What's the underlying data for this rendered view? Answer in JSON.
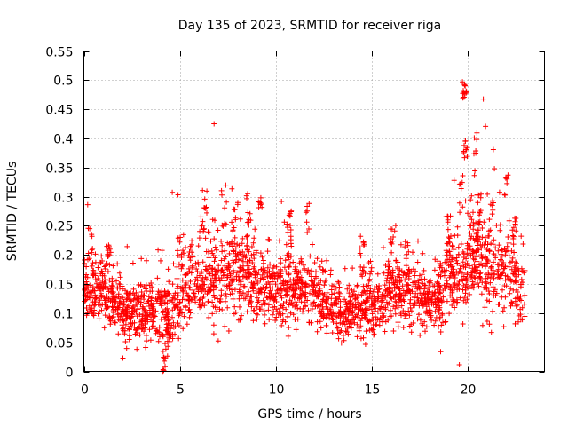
{
  "chart_data": {
    "type": "scatter",
    "title": "Day 135 of 2023, SRMTID for receiver riga",
    "xlabel": "GPS time / hours",
    "ylabel": "SRMTID / TECUs",
    "xlim": [
      0,
      24
    ],
    "ylim": [
      0,
      0.55
    ],
    "xticks": [
      "0",
      "5",
      "10",
      "15",
      "20"
    ],
    "yticks": [
      "0",
      "0.05",
      "0.1",
      "0.15",
      "0.2",
      "0.25",
      "0.3",
      "0.35",
      "0.4",
      "0.45",
      "0.5",
      "0.55"
    ],
    "grid": true,
    "marker": "+",
    "color": "#ff0000",
    "x_end_hours": 23.0,
    "level_profile": [
      [
        0.0,
        0.135
      ],
      [
        0.5,
        0.14
      ],
      [
        1.0,
        0.13
      ],
      [
        1.5,
        0.12
      ],
      [
        2.0,
        0.105
      ],
      [
        2.5,
        0.095
      ],
      [
        3.0,
        0.1
      ],
      [
        3.5,
        0.105
      ],
      [
        4.0,
        0.1
      ],
      [
        4.3,
        0.085
      ],
      [
        4.6,
        0.11
      ],
      [
        5.0,
        0.13
      ],
      [
        5.5,
        0.145
      ],
      [
        6.0,
        0.15
      ],
      [
        6.5,
        0.16
      ],
      [
        7.0,
        0.15
      ],
      [
        7.5,
        0.16
      ],
      [
        8.0,
        0.17
      ],
      [
        8.5,
        0.165
      ],
      [
        9.0,
        0.15
      ],
      [
        9.5,
        0.14
      ],
      [
        10.0,
        0.14
      ],
      [
        10.5,
        0.145
      ],
      [
        11.0,
        0.14
      ],
      [
        11.5,
        0.14
      ],
      [
        12.0,
        0.13
      ],
      [
        12.5,
        0.12
      ],
      [
        13.0,
        0.11
      ],
      [
        13.5,
        0.1
      ],
      [
        14.0,
        0.105
      ],
      [
        14.5,
        0.11
      ],
      [
        15.0,
        0.11
      ],
      [
        15.5,
        0.12
      ],
      [
        16.0,
        0.135
      ],
      [
        16.5,
        0.14
      ],
      [
        17.0,
        0.14
      ],
      [
        17.5,
        0.13
      ],
      [
        18.0,
        0.12
      ],
      [
        18.5,
        0.13
      ],
      [
        19.0,
        0.15
      ],
      [
        19.5,
        0.17
      ],
      [
        20.0,
        0.19
      ],
      [
        20.5,
        0.19
      ],
      [
        21.0,
        0.18
      ],
      [
        21.5,
        0.18
      ],
      [
        22.0,
        0.19
      ],
      [
        22.5,
        0.15
      ],
      [
        23.0,
        0.12
      ]
    ],
    "spread_profile": [
      [
        0.0,
        0.035
      ],
      [
        1.0,
        0.035
      ],
      [
        2.5,
        0.03
      ],
      [
        4.0,
        0.04
      ],
      [
        5.5,
        0.045
      ],
      [
        6.5,
        0.05
      ],
      [
        8.0,
        0.05
      ],
      [
        10.0,
        0.04
      ],
      [
        12.0,
        0.035
      ],
      [
        13.5,
        0.03
      ],
      [
        15.0,
        0.035
      ],
      [
        16.5,
        0.04
      ],
      [
        18.0,
        0.035
      ],
      [
        19.5,
        0.05
      ],
      [
        20.5,
        0.06
      ],
      [
        22.0,
        0.055
      ],
      [
        23.0,
        0.035
      ]
    ],
    "bursts": [
      [
        0.35,
        0.26,
        0.03
      ],
      [
        1.3,
        0.22,
        0.012
      ],
      [
        4.15,
        0.035,
        0.02
      ],
      [
        5.0,
        0.27,
        0.04
      ],
      [
        5.6,
        0.24,
        0.03
      ],
      [
        6.3,
        0.33,
        0.04
      ],
      [
        7.3,
        0.33,
        0.04
      ],
      [
        7.9,
        0.29,
        0.04
      ],
      [
        8.6,
        0.31,
        0.04
      ],
      [
        9.2,
        0.31,
        0.015
      ],
      [
        10.7,
        0.28,
        0.04
      ],
      [
        11.7,
        0.31,
        0.04
      ],
      [
        14.5,
        0.23,
        0.03
      ],
      [
        16.0,
        0.27,
        0.04
      ],
      [
        16.8,
        0.25,
        0.04
      ],
      [
        19.0,
        0.27,
        0.04
      ],
      [
        19.7,
        0.34,
        0.03
      ],
      [
        19.82,
        0.5,
        0.015
      ],
      [
        19.9,
        0.4,
        0.02
      ],
      [
        20.4,
        0.41,
        0.03
      ],
      [
        20.6,
        0.33,
        0.04
      ],
      [
        21.2,
        0.3,
        0.04
      ],
      [
        22.0,
        0.34,
        0.02
      ],
      [
        22.4,
        0.27,
        0.04
      ]
    ],
    "point_count": 2400
  }
}
